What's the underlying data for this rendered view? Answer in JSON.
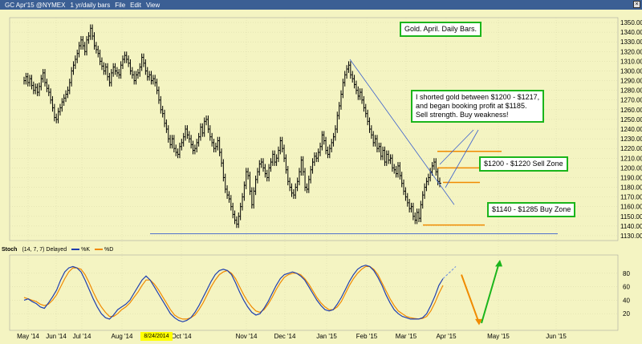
{
  "window": {
    "title": "GC Apr'15 @NYMEX",
    "interval": "1 yr/daily bars",
    "menu": [
      "File",
      "Edit",
      "View"
    ]
  },
  "annotations": {
    "chart_title": "Gold. April. Daily Bars.",
    "trade_note_line1": "I shorted gold between $1200 - $1217,",
    "trade_note_line2": "and began booking profit at $1185.",
    "trade_note_line3": "Sell strength.  Buy weakness!",
    "sell_zone": "$1200 - $1220 Sell Zone",
    "buy_zone": "$1140 - $1285 Buy Zone"
  },
  "stochastic": {
    "label": "Stoch",
    "params": "(14, 7, 7) Delayed",
    "k_label": "%K",
    "d_label": "%D",
    "levels": [
      "80",
      "60",
      "40",
      "20"
    ]
  },
  "highlighted_date": "8/24/2014",
  "colors": {
    "background": "#f4f4c2",
    "bars": "#000000",
    "trendline": "#3a5fcd",
    "orange": "#f08a00",
    "green": "#1bb51b",
    "blue": "#1f3fae"
  },
  "chart_data": {
    "type": "bar",
    "x_labels": [
      "May '14",
      "Jun '14",
      "Jul '14",
      "Aug '14",
      "Oct '14",
      "Nov '14",
      "Dec '14",
      "Jan '15",
      "Feb '15",
      "Mar '15",
      "Apr '15",
      "May '15",
      "Jun '15"
    ],
    "y_ticks": [
      1350,
      1340,
      1330,
      1320,
      1310,
      1300,
      1290,
      1280,
      1270,
      1260,
      1250,
      1240,
      1230,
      1220,
      1210,
      1200,
      1190,
      1180,
      1170,
      1160,
      1150,
      1140,
      1130
    ],
    "ylim": [
      1125,
      1355
    ],
    "price_closes": [
      1290,
      1294,
      1288,
      1292,
      1285,
      1280,
      1283,
      1278,
      1284,
      1292,
      1298,
      1288,
      1282,
      1278,
      1270,
      1262,
      1252,
      1250,
      1258,
      1262,
      1268,
      1272,
      1276,
      1280,
      1288,
      1300,
      1306,
      1312,
      1318,
      1326,
      1332,
      1326,
      1320,
      1332,
      1336,
      1344,
      1336,
      1326,
      1322,
      1318,
      1310,
      1305,
      1300,
      1304,
      1294,
      1288,
      1298,
      1304,
      1300,
      1298,
      1296,
      1306,
      1312,
      1316,
      1312,
      1308,
      1300,
      1296,
      1290,
      1296,
      1298,
      1304,
      1314,
      1308,
      1300,
      1294,
      1296,
      1290,
      1292,
      1288,
      1280,
      1270,
      1260,
      1256,
      1246,
      1240,
      1230,
      1224,
      1230,
      1220,
      1216,
      1214,
      1222,
      1226,
      1232,
      1240,
      1234,
      1230,
      1224,
      1218,
      1220,
      1226,
      1232,
      1242,
      1236,
      1248,
      1250,
      1240,
      1232,
      1226,
      1220,
      1222,
      1228,
      1216,
      1205,
      1190,
      1178,
      1172,
      1168,
      1160,
      1152,
      1146,
      1142,
      1150,
      1160,
      1170,
      1182,
      1196,
      1192,
      1176,
      1162,
      1176,
      1188,
      1196,
      1204,
      1206,
      1200,
      1194,
      1190,
      1200,
      1206,
      1214,
      1206,
      1210,
      1218,
      1228,
      1220,
      1210,
      1198,
      1186,
      1180,
      1174,
      1172,
      1180,
      1186,
      1196,
      1208,
      1196,
      1180,
      1178,
      1188,
      1198,
      1206,
      1212,
      1210,
      1216,
      1222,
      1234,
      1228,
      1218,
      1214,
      1220,
      1226,
      1232,
      1240,
      1254,
      1264,
      1276,
      1288,
      1296,
      1302,
      1306,
      1296,
      1292,
      1286,
      1280,
      1274,
      1278,
      1270,
      1262,
      1256,
      1248,
      1240,
      1234,
      1226,
      1230,
      1220,
      1222,
      1212,
      1218,
      1206,
      1214,
      1208,
      1210,
      1200,
      1198,
      1194,
      1202,
      1192,
      1184,
      1176,
      1170,
      1164,
      1158,
      1160,
      1150,
      1146,
      1154,
      1148,
      1162,
      1172,
      1180,
      1186,
      1190,
      1196,
      1202,
      1206,
      1196,
      1186,
      1184
    ],
    "support_line": 1132,
    "sell_zone_lines": [
      1217,
      1200,
      1185
    ],
    "buy_zone_line": 1141,
    "stoch_k": [
      40,
      42,
      38,
      35,
      30,
      28,
      36,
      45,
      55,
      70,
      82,
      88,
      90,
      88,
      82,
      70,
      56,
      42,
      30,
      20,
      14,
      12,
      18,
      26,
      30,
      34,
      40,
      50,
      60,
      70,
      76,
      70,
      60,
      50,
      40,
      30,
      20,
      14,
      10,
      8,
      10,
      14,
      22,
      32,
      44,
      56,
      68,
      78,
      84,
      86,
      84,
      78,
      66,
      52,
      40,
      30,
      22,
      18,
      20,
      28,
      38,
      50,
      62,
      72,
      78,
      80,
      82,
      80,
      76,
      70,
      60,
      50,
      40,
      32,
      26,
      24,
      26,
      34,
      44,
      56,
      68,
      78,
      86,
      90,
      92,
      90,
      84,
      74,
      62,
      48,
      36,
      26,
      20,
      16,
      14,
      12,
      12,
      12,
      14,
      20,
      32,
      46,
      62,
      72
    ],
    "stoch_d": [
      44,
      42,
      40,
      38,
      34,
      32,
      34,
      40,
      48,
      60,
      72,
      82,
      88,
      88,
      86,
      78,
      66,
      52,
      40,
      30,
      22,
      16,
      16,
      20,
      26,
      30,
      36,
      44,
      52,
      62,
      70,
      70,
      64,
      56,
      46,
      36,
      26,
      18,
      14,
      12,
      12,
      14,
      18,
      26,
      36,
      48,
      60,
      70,
      78,
      82,
      84,
      80,
      72,
      60,
      48,
      38,
      30,
      24,
      22,
      26,
      34,
      44,
      56,
      66,
      74,
      78,
      80,
      80,
      78,
      72,
      64,
      54,
      44,
      36,
      30,
      26,
      26,
      30,
      38,
      50,
      62,
      72,
      80,
      86,
      90,
      90,
      86,
      78,
      66,
      54,
      42,
      32,
      24,
      20,
      16,
      14,
      13,
      12,
      13,
      16,
      24,
      36,
      50,
      62
    ],
    "stoch_ylim": [
      0,
      100
    ]
  }
}
